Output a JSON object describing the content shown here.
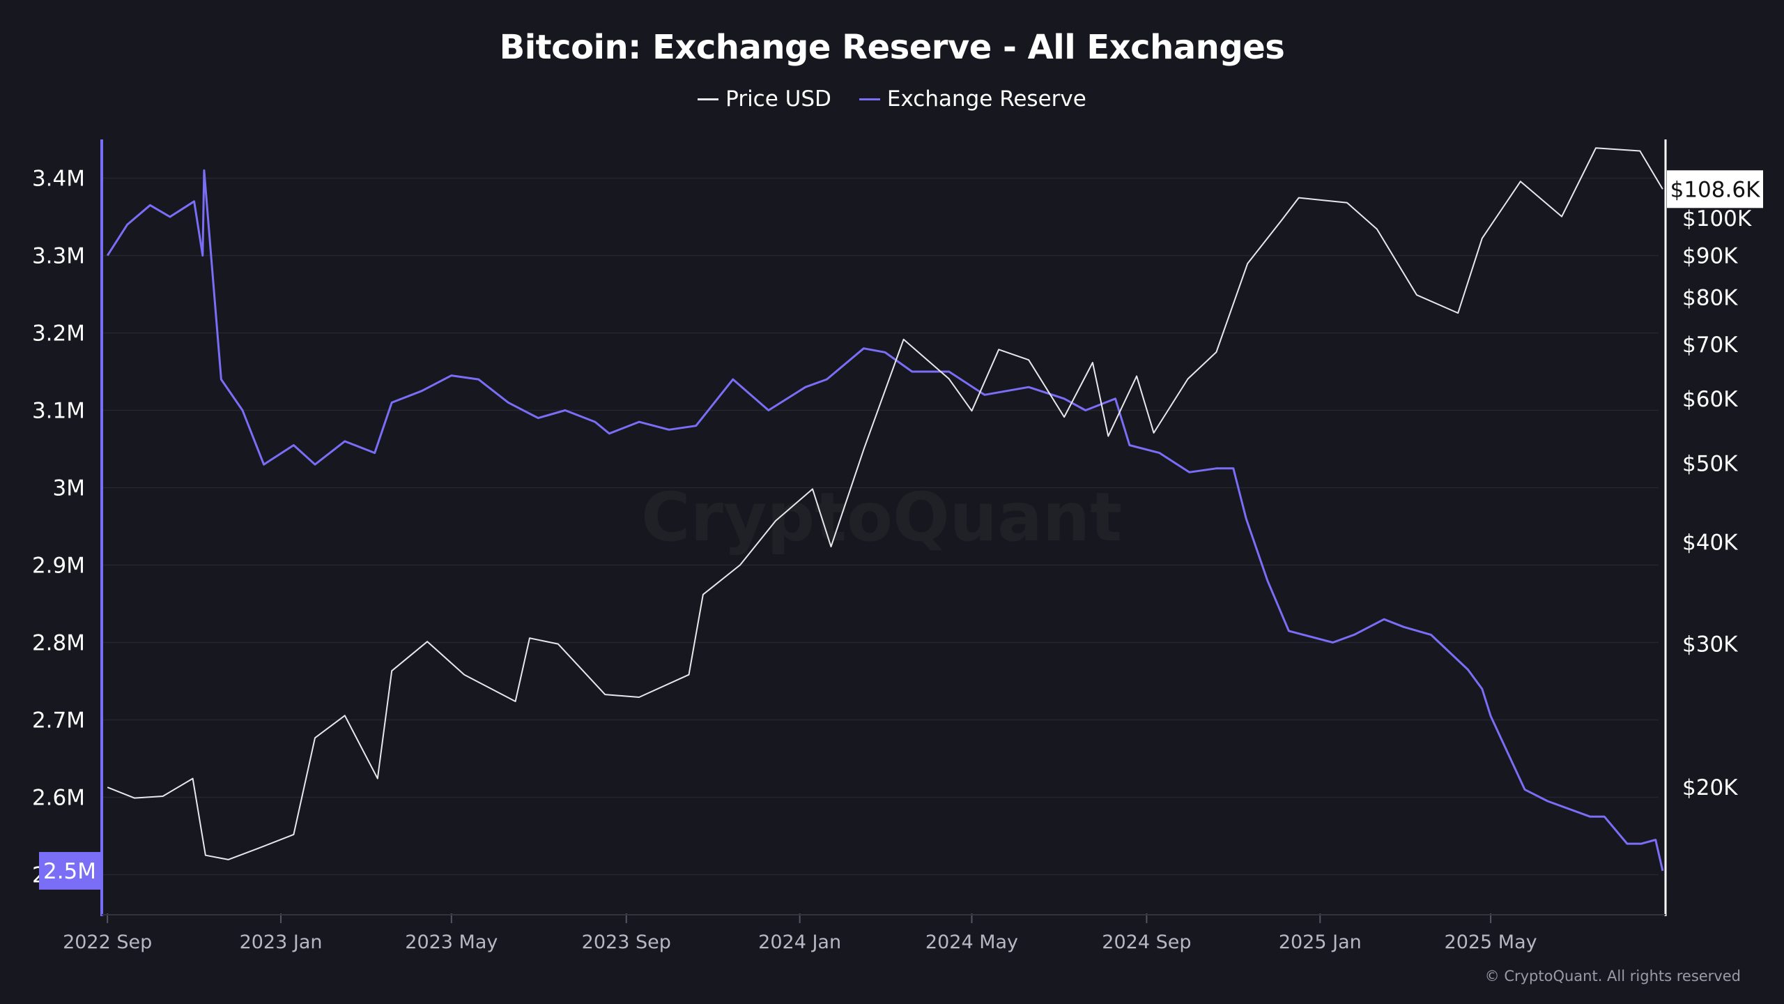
{
  "chart_data": {
    "type": "line",
    "title": "Bitcoin: Exchange Reserve - All Exchanges",
    "legend_position": "top-center",
    "grid": true,
    "series": [
      {
        "name": "Price USD",
        "axis": "right",
        "color": "#e8e8ec",
        "x": [
          "2022-09-01",
          "2022-09-20",
          "2022-10-10",
          "2022-10-31",
          "2022-11-09",
          "2022-11-25",
          "2022-12-15",
          "2023-01-10",
          "2023-01-25",
          "2023-02-15",
          "2023-03-10",
          "2023-03-20",
          "2023-04-14",
          "2023-05-10",
          "2023-06-15",
          "2023-06-25",
          "2023-07-15",
          "2023-08-17",
          "2023-09-10",
          "2023-10-15",
          "2023-10-25",
          "2023-11-20",
          "2023-12-15",
          "2024-01-10",
          "2024-01-23",
          "2024-02-15",
          "2024-03-14",
          "2024-04-15",
          "2024-05-01",
          "2024-05-20",
          "2024-06-10",
          "2024-07-05",
          "2024-07-25",
          "2024-08-05",
          "2024-08-25",
          "2024-09-06",
          "2024-09-30",
          "2024-10-20",
          "2024-11-11",
          "2024-12-05",
          "2024-12-17",
          "2025-01-20",
          "2025-02-10",
          "2025-03-10",
          "2025-04-08",
          "2025-04-25",
          "2025-05-22",
          "2025-06-20",
          "2025-07-14",
          "2025-08-14",
          "2025-08-30"
        ],
        "values": [
          20000,
          19400,
          19500,
          20500,
          16500,
          16300,
          16800,
          17500,
          23000,
          24500,
          20500,
          27800,
          30200,
          27500,
          25500,
          30500,
          30000,
          26000,
          25800,
          27500,
          34500,
          37500,
          42500,
          46500,
          39500,
          52000,
          71000,
          63500,
          58000,
          69000,
          67000,
          57000,
          66500,
          54000,
          64000,
          54500,
          63500,
          68500,
          88000,
          99500,
          106000,
          104500,
          97000,
          80500,
          76500,
          94500,
          111000,
          100500,
          122000,
          121000,
          108600
        ]
      },
      {
        "name": "Exchange Reserve",
        "axis": "left",
        "color": "#7b6ef6",
        "x": [
          "2022-09-01",
          "2022-09-15",
          "2022-10-01",
          "2022-10-15",
          "2022-11-01",
          "2022-11-07",
          "2022-11-08",
          "2022-11-20",
          "2022-12-05",
          "2022-12-20",
          "2023-01-10",
          "2023-01-25",
          "2023-02-15",
          "2023-03-08",
          "2023-03-20",
          "2023-04-10",
          "2023-05-01",
          "2023-05-20",
          "2023-06-10",
          "2023-07-01",
          "2023-07-20",
          "2023-08-10",
          "2023-08-20",
          "2023-09-10",
          "2023-10-01",
          "2023-10-20",
          "2023-11-15",
          "2023-12-10",
          "2024-01-05",
          "2024-01-20",
          "2024-02-15",
          "2024-03-01",
          "2024-03-20",
          "2024-04-15",
          "2024-05-10",
          "2024-06-10",
          "2024-07-05",
          "2024-07-20",
          "2024-08-10",
          "2024-08-20",
          "2024-09-10",
          "2024-10-01",
          "2024-10-20",
          "2024-11-01",
          "2024-11-10",
          "2024-11-25",
          "2024-12-10",
          "2025-01-10",
          "2025-01-25",
          "2025-02-15",
          "2025-03-01",
          "2025-03-20",
          "2025-04-15",
          "2025-04-25",
          "2025-05-01",
          "2025-05-25",
          "2025-06-10",
          "2025-07-10",
          "2025-07-20",
          "2025-08-05",
          "2025-08-15",
          "2025-08-25",
          "2025-08-30"
        ],
        "values": [
          3300000,
          3340000,
          3365000,
          3350000,
          3370000,
          3300000,
          3410000,
          3140000,
          3100000,
          3030000,
          3055000,
          3030000,
          3060000,
          3045000,
          3110000,
          3125000,
          3145000,
          3140000,
          3110000,
          3090000,
          3100000,
          3085000,
          3070000,
          3085000,
          3075000,
          3080000,
          3140000,
          3100000,
          3130000,
          3140000,
          3180000,
          3175000,
          3150000,
          3150000,
          3120000,
          3130000,
          3115000,
          3100000,
          3115000,
          3055000,
          3045000,
          3020000,
          3025000,
          3025000,
          2960000,
          2880000,
          2815000,
          2800000,
          2810000,
          2830000,
          2820000,
          2810000,
          2765000,
          2740000,
          2705000,
          2610000,
          2595000,
          2575000,
          2575000,
          2540000,
          2540000,
          2545000,
          2505000
        ]
      }
    ],
    "x_ticks": [
      "2022 Sep",
      "2023 Jan",
      "2023 May",
      "2023 Sep",
      "2024 Jan",
      "2024 May",
      "2024 Sep",
      "2025 Jan",
      "2025 May"
    ],
    "x_range": [
      "2022-08-28",
      "2025-09-01"
    ],
    "y_left": {
      "ticks": [
        "3.4M",
        "3.3M",
        "3.2M",
        "3.1M",
        "3M",
        "2.9M",
        "2.8M",
        "2.7M",
        "2.6M",
        "2.5M"
      ],
      "tick_values": [
        3400000,
        3300000,
        3200000,
        3100000,
        3000000,
        2900000,
        2800000,
        2700000,
        2600000,
        2500000
      ],
      "range": [
        2450000,
        3450000
      ],
      "current_value_label": "2.5M"
    },
    "y_right": {
      "scale": "log",
      "ticks": [
        "$100K",
        "$90K",
        "$80K",
        "$70K",
        "$60K",
        "$50K",
        "$40K",
        "$30K",
        "$20K"
      ],
      "tick_values": [
        100000,
        90000,
        80000,
        70000,
        60000,
        50000,
        40000,
        30000,
        20000
      ],
      "range": [
        14000,
        125000
      ],
      "current_value_label": "$108.6K"
    }
  },
  "footer": "© CryptoQuant. All rights reserved",
  "colors": {
    "background": "#17171f",
    "grid": "#262630",
    "price": "#e8e8ec",
    "reserve": "#7b6ef6",
    "tick_text": "#b8b8c4"
  }
}
